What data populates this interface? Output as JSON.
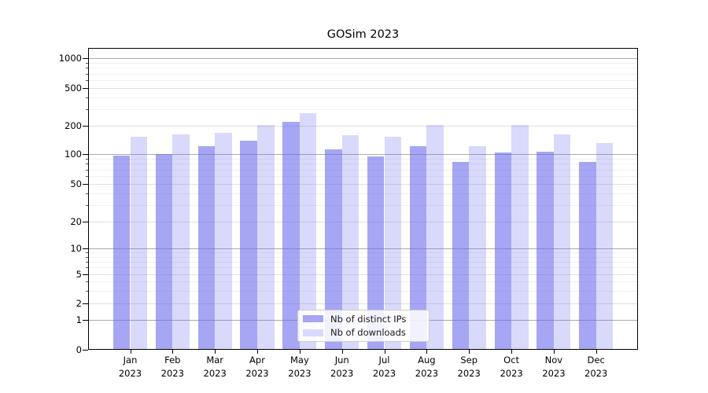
{
  "figure": {
    "title": "GOSim 2023"
  },
  "chart_data": {
    "type": "bar",
    "title": "GOSim 2023",
    "categories": [
      "Jan",
      "Feb",
      "Mar",
      "Apr",
      "May",
      "Jun",
      "Jul",
      "Aug",
      "Sep",
      "Oct",
      "Nov",
      "Dec"
    ],
    "x_year_label": "2023",
    "series": [
      {
        "name": "Nb of distinct IPs",
        "legend_color": "#a6a6f5",
        "fill": "rgba(102,102,238,0.58)",
        "values": [
          97,
          100,
          123,
          140,
          220,
          113,
          95,
          121,
          83,
          105,
          107,
          83
        ]
      },
      {
        "name": "Nb of downloads",
        "legend_color": "#d9d9fb",
        "fill": "rgba(102,102,238,0.25)",
        "values": [
          154,
          163,
          168,
          206,
          270,
          159,
          154,
          206,
          122,
          206,
          162,
          132
        ]
      }
    ],
    "y_axis": {
      "scale": "symlog",
      "tick_values": [
        0,
        1,
        2,
        5,
        10,
        20,
        50,
        100,
        200,
        500,
        1000
      ],
      "tick_labels": [
        "0",
        "1",
        "2",
        "5",
        "10",
        "20",
        "50",
        "100",
        "200",
        "500",
        "1000"
      ],
      "major_gridline_values": [
        1,
        10,
        100,
        1000
      ],
      "ylim_top": 1260
    },
    "grid": true,
    "legend_position": "lower center"
  }
}
